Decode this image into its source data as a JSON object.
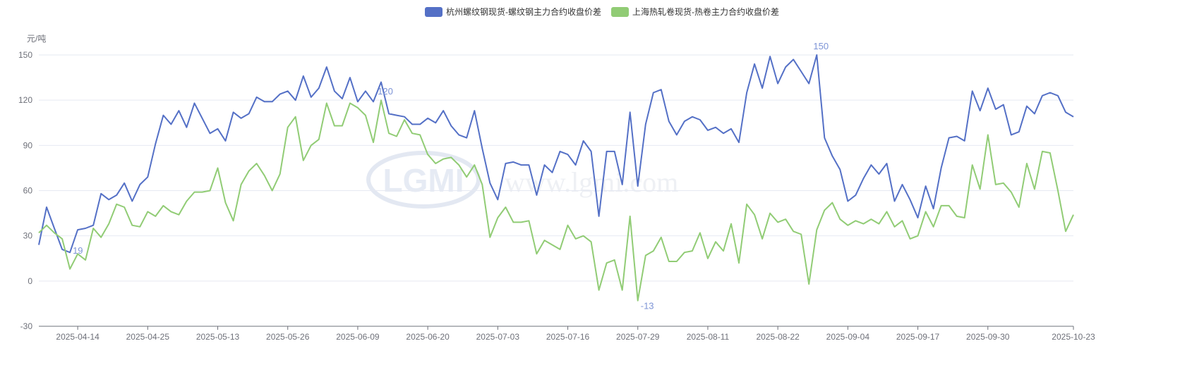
{
  "chart_data": {
    "type": "line",
    "unit_label": "元/吨",
    "ylim": [
      -30,
      150
    ],
    "yticks": [
      -30,
      0,
      30,
      60,
      90,
      120,
      150
    ],
    "grid": true,
    "legend_position": "top",
    "watermark": "LGMI www.lgmi.com",
    "categories": [
      "2025-04-07",
      "2025-04-08",
      "2025-04-09",
      "2025-04-10",
      "2025-04-11",
      "2025-04-14",
      "2025-04-15",
      "2025-04-16",
      "2025-04-17",
      "2025-04-18",
      "2025-04-21",
      "2025-04-22",
      "2025-04-23",
      "2025-04-24",
      "2025-04-25",
      "2025-04-28",
      "2025-04-29",
      "2025-04-30",
      "2025-05-06",
      "2025-05-07",
      "2025-05-08",
      "2025-05-09",
      "2025-05-12",
      "2025-05-13",
      "2025-05-14",
      "2025-05-15",
      "2025-05-16",
      "2025-05-19",
      "2025-05-20",
      "2025-05-21",
      "2025-05-22",
      "2025-05-23",
      "2025-05-26",
      "2025-05-27",
      "2025-05-28",
      "2025-05-29",
      "2025-05-30",
      "2025-06-03",
      "2025-06-04",
      "2025-06-05",
      "2025-06-06",
      "2025-06-09",
      "2025-06-10",
      "2025-06-11",
      "2025-06-12",
      "2025-06-13",
      "2025-06-16",
      "2025-06-17",
      "2025-06-18",
      "2025-06-19",
      "2025-06-20",
      "2025-06-23",
      "2025-06-24",
      "2025-06-25",
      "2025-06-26",
      "2025-06-27",
      "2025-06-30",
      "2025-07-01",
      "2025-07-02",
      "2025-07-03",
      "2025-07-04",
      "2025-07-07",
      "2025-07-08",
      "2025-07-09",
      "2025-07-10",
      "2025-07-11",
      "2025-07-14",
      "2025-07-15",
      "2025-07-16",
      "2025-07-17",
      "2025-07-18",
      "2025-07-21",
      "2025-07-22",
      "2025-07-23",
      "2025-07-24",
      "2025-07-25",
      "2025-07-28",
      "2025-07-29",
      "2025-07-30",
      "2025-07-31",
      "2025-08-01",
      "2025-08-04",
      "2025-08-05",
      "2025-08-06",
      "2025-08-07",
      "2025-08-08",
      "2025-08-11",
      "2025-08-12",
      "2025-08-13",
      "2025-08-14",
      "2025-08-15",
      "2025-08-18",
      "2025-08-19",
      "2025-08-20",
      "2025-08-21",
      "2025-08-22",
      "2025-08-25",
      "2025-08-26",
      "2025-08-27",
      "2025-08-28",
      "2025-08-29",
      "2025-09-01",
      "2025-09-02",
      "2025-09-03",
      "2025-09-04",
      "2025-09-05",
      "2025-09-08",
      "2025-09-09",
      "2025-09-10",
      "2025-09-11",
      "2025-09-12",
      "2025-09-15",
      "2025-09-16",
      "2025-09-17",
      "2025-09-18",
      "2025-09-19",
      "2025-09-22",
      "2025-09-23",
      "2025-09-24",
      "2025-09-25",
      "2025-09-26",
      "2025-09-29",
      "2025-09-30",
      "2025-10-09",
      "2025-10-10",
      "2025-10-13",
      "2025-10-14",
      "2025-10-15",
      "2025-10-16",
      "2025-10-17",
      "2025-10-20",
      "2025-10-21",
      "2025-10-22",
      "2025-10-23"
    ],
    "xtick_labels": [
      "2025-04-14",
      "2025-04-25",
      "2025-05-13",
      "2025-05-26",
      "2025-06-09",
      "2025-06-20",
      "2025-07-03",
      "2025-07-16",
      "2025-07-29",
      "2025-08-11",
      "2025-08-22",
      "2025-09-04",
      "2025-09-17",
      "2025-09-30",
      "2025-10-23"
    ],
    "series": [
      {
        "name": "杭州螺纹钢现货-螺纹钢主力合约收盘价差",
        "color": "#5470c6",
        "values": [
          24,
          49,
          35,
          21,
          19,
          34,
          35,
          37,
          58,
          54,
          57,
          65,
          53,
          64,
          69,
          91,
          110,
          104,
          113,
          102,
          118,
          108,
          98,
          101,
          93,
          112,
          108,
          111,
          122,
          119,
          119,
          124,
          126,
          120,
          136,
          122,
          128,
          142,
          126,
          121,
          135,
          119,
          126,
          119,
          132,
          111,
          110,
          109,
          104,
          104,
          108,
          105,
          113,
          103,
          97,
          95,
          113,
          88,
          65,
          54,
          78,
          79,
          77,
          77,
          57,
          77,
          72,
          86,
          84,
          77,
          93,
          86,
          43,
          86,
          86,
          64,
          112,
          63,
          104,
          125,
          127,
          106,
          97,
          106,
          109,
          107,
          100,
          102,
          98,
          101,
          92,
          125,
          144,
          128,
          149,
          131,
          142,
          147,
          139,
          131,
          150,
          95,
          83,
          74,
          53,
          57,
          68,
          77,
          71,
          78,
          53,
          64,
          54,
          42,
          63,
          48,
          75,
          95,
          96,
          93,
          126,
          113,
          128,
          114,
          117,
          97,
          99,
          116,
          111,
          123,
          125,
          123,
          112,
          109
        ],
        "labels": [
          {
            "index": 4,
            "text": "19"
          },
          {
            "index": 100,
            "text": "150"
          }
        ]
      },
      {
        "name": "上海热轧卷现货-热卷主力合约收盘价差",
        "color": "#91cc75",
        "values": [
          32,
          37,
          32,
          28,
          8,
          18,
          14,
          35,
          29,
          38,
          51,
          49,
          37,
          36,
          46,
          43,
          50,
          46,
          44,
          53,
          59,
          59,
          60,
          75,
          52,
          40,
          64,
          73,
          78,
          70,
          60,
          71,
          102,
          109,
          80,
          90,
          94,
          118,
          103,
          103,
          118,
          115,
          110,
          92,
          120,
          98,
          96,
          107,
          98,
          97,
          84,
          78,
          81,
          82,
          77,
          69,
          77,
          64,
          29,
          42,
          49,
          39,
          39,
          40,
          18,
          27,
          24,
          21,
          37,
          28,
          30,
          26,
          -6,
          12,
          14,
          -6,
          43,
          -13,
          17,
          20,
          29,
          13,
          13,
          19,
          20,
          32,
          15,
          26,
          20,
          38,
          12,
          51,
          44,
          28,
          45,
          39,
          41,
          33,
          31,
          -2,
          34,
          47,
          52,
          41,
          37,
          40,
          38,
          41,
          38,
          46,
          36,
          40,
          28,
          30,
          46,
          36,
          50,
          50,
          43,
          42,
          77,
          61,
          97,
          64,
          65,
          59,
          49,
          78,
          61,
          86,
          85,
          60,
          33,
          44
        ],
        "labels": [
          {
            "index": 44,
            "text": "120"
          },
          {
            "index": 77,
            "text": "-13"
          }
        ]
      }
    ]
  }
}
